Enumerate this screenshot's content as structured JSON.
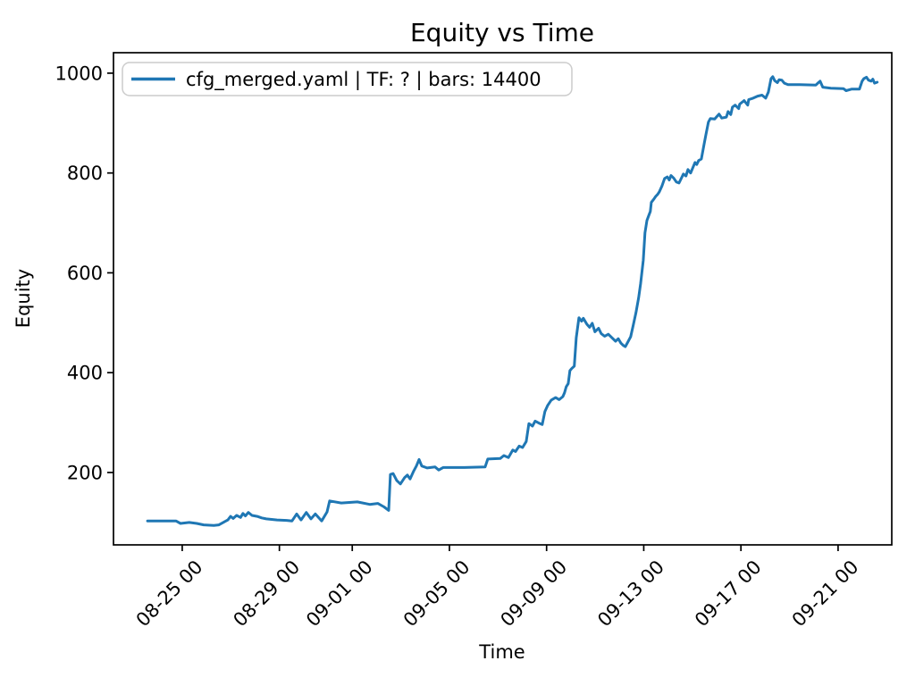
{
  "figure": {
    "background": "#ffffff"
  },
  "chart_data": {
    "type": "line",
    "title": "Equity vs Time",
    "xlabel": "Time",
    "ylabel": "Equity",
    "grid": false,
    "line_color": "#1f77b4",
    "legend": {
      "loc": "upper left",
      "entries": [
        {
          "label": "cfg_merged.yaml | TF: ? | bars: 14400",
          "color": "#1f77b4"
        }
      ]
    },
    "x_axis": {
      "unit": "days since 08-23 00:00",
      "lim": [
        -0.83,
        31.21
      ],
      "tick_rotation": 45,
      "ticks": [
        {
          "pos": 2,
          "label": "08-25 00"
        },
        {
          "pos": 6,
          "label": "08-29 00"
        },
        {
          "pos": 9,
          "label": "09-01 00"
        },
        {
          "pos": 13,
          "label": "09-05 00"
        },
        {
          "pos": 17,
          "label": "09-09 00"
        },
        {
          "pos": 21,
          "label": "09-13 00"
        },
        {
          "pos": 25,
          "label": "09-17 00"
        },
        {
          "pos": 29,
          "label": "09-21 00"
        }
      ]
    },
    "y_axis": {
      "lim": [
        55,
        1041
      ],
      "ticks": [
        200,
        400,
        600,
        800,
        1000
      ]
    },
    "series": [
      {
        "name": "cfg_merged.yaml | TF: ? | bars: 14400",
        "color": "#1f77b4",
        "points": [
          [
            0.57,
            103
          ],
          [
            1.2,
            103
          ],
          [
            1.74,
            103
          ],
          [
            1.93,
            98
          ],
          [
            2.29,
            100
          ],
          [
            2.6,
            98
          ],
          [
            2.88,
            95
          ],
          [
            3.3,
            94
          ],
          [
            3.51,
            95
          ],
          [
            3.88,
            105
          ],
          [
            3.99,
            112
          ],
          [
            4.1,
            108
          ],
          [
            4.24,
            114
          ],
          [
            4.4,
            110
          ],
          [
            4.5,
            118
          ],
          [
            4.6,
            113
          ],
          [
            4.72,
            120
          ],
          [
            4.87,
            114
          ],
          [
            5.09,
            112
          ],
          [
            5.27,
            109
          ],
          [
            5.46,
            107
          ],
          [
            5.9,
            105
          ],
          [
            6.3,
            104
          ],
          [
            6.52,
            103
          ],
          [
            6.71,
            117
          ],
          [
            6.89,
            105
          ],
          [
            7.11,
            120
          ],
          [
            7.3,
            107
          ],
          [
            7.48,
            117
          ],
          [
            7.74,
            103
          ],
          [
            7.96,
            121
          ],
          [
            8.07,
            143
          ],
          [
            8.55,
            139
          ],
          [
            9.21,
            141
          ],
          [
            9.72,
            136
          ],
          [
            10.05,
            138
          ],
          [
            10.31,
            131
          ],
          [
            10.5,
            124
          ],
          [
            10.57,
            196
          ],
          [
            10.68,
            198
          ],
          [
            10.83,
            184
          ],
          [
            10.98,
            177
          ],
          [
            11.16,
            190
          ],
          [
            11.27,
            195
          ],
          [
            11.38,
            187
          ],
          [
            11.53,
            203
          ],
          [
            11.64,
            213
          ],
          [
            11.75,
            226
          ],
          [
            11.86,
            213
          ],
          [
            12.08,
            209
          ],
          [
            12.41,
            211
          ],
          [
            12.56,
            205
          ],
          [
            12.74,
            210
          ],
          [
            13.62,
            210
          ],
          [
            14.47,
            211
          ],
          [
            14.58,
            227
          ],
          [
            15.09,
            228
          ],
          [
            15.24,
            234
          ],
          [
            15.43,
            230
          ],
          [
            15.61,
            245
          ],
          [
            15.72,
            242
          ],
          [
            15.87,
            253
          ],
          [
            16.01,
            250
          ],
          [
            16.16,
            262
          ],
          [
            16.27,
            298
          ],
          [
            16.42,
            293
          ],
          [
            16.53,
            303
          ],
          [
            16.68,
            299
          ],
          [
            16.82,
            296
          ],
          [
            16.93,
            322
          ],
          [
            17.04,
            334
          ],
          [
            17.19,
            345
          ],
          [
            17.37,
            350
          ],
          [
            17.52,
            346
          ],
          [
            17.67,
            352
          ],
          [
            17.74,
            360
          ],
          [
            17.81,
            372
          ],
          [
            17.89,
            378
          ],
          [
            17.96,
            404
          ],
          [
            18.03,
            408
          ],
          [
            18.14,
            413
          ],
          [
            18.22,
            470
          ],
          [
            18.33,
            510
          ],
          [
            18.44,
            503
          ],
          [
            18.51,
            509
          ],
          [
            18.66,
            497
          ],
          [
            18.77,
            491
          ],
          [
            18.88,
            499
          ],
          [
            18.99,
            482
          ],
          [
            19.14,
            489
          ],
          [
            19.25,
            478
          ],
          [
            19.39,
            473
          ],
          [
            19.54,
            477
          ],
          [
            19.69,
            470
          ],
          [
            19.84,
            463
          ],
          [
            19.95,
            468
          ],
          [
            20.06,
            459
          ],
          [
            20.17,
            454
          ],
          [
            20.24,
            452
          ],
          [
            20.35,
            462
          ],
          [
            20.46,
            472
          ],
          [
            20.57,
            496
          ],
          [
            20.68,
            520
          ],
          [
            20.79,
            550
          ],
          [
            20.87,
            578
          ],
          [
            20.98,
            625
          ],
          [
            21.05,
            680
          ],
          [
            21.13,
            705
          ],
          [
            21.2,
            714
          ],
          [
            21.27,
            723
          ],
          [
            21.31,
            741
          ],
          [
            21.42,
            748
          ],
          [
            21.49,
            753
          ],
          [
            21.57,
            757
          ],
          [
            21.64,
            762
          ],
          [
            21.75,
            774
          ],
          [
            21.86,
            789
          ],
          [
            21.97,
            792
          ],
          [
            22.05,
            786
          ],
          [
            22.12,
            795
          ],
          [
            22.23,
            790
          ],
          [
            22.34,
            782
          ],
          [
            22.45,
            780
          ],
          [
            22.63,
            798
          ],
          [
            22.74,
            794
          ],
          [
            22.82,
            807
          ],
          [
            22.93,
            800
          ],
          [
            23.11,
            821
          ],
          [
            23.18,
            817
          ],
          [
            23.26,
            825
          ],
          [
            23.37,
            828
          ],
          [
            23.48,
            857
          ],
          [
            23.55,
            875
          ],
          [
            23.66,
            902
          ],
          [
            23.74,
            909
          ],
          [
            23.92,
            908
          ],
          [
            24.1,
            918
          ],
          [
            24.21,
            910
          ],
          [
            24.4,
            912
          ],
          [
            24.47,
            923
          ],
          [
            24.58,
            917
          ],
          [
            24.65,
            932
          ],
          [
            24.76,
            936
          ],
          [
            24.91,
            929
          ],
          [
            24.95,
            938
          ],
          [
            25.13,
            945
          ],
          [
            25.28,
            936
          ],
          [
            25.32,
            947
          ],
          [
            25.5,
            950
          ],
          [
            25.69,
            954
          ],
          [
            25.87,
            956
          ],
          [
            26.02,
            950
          ],
          [
            26.13,
            962
          ],
          [
            26.24,
            989
          ],
          [
            26.31,
            993
          ],
          [
            26.39,
            985
          ],
          [
            26.5,
            981
          ],
          [
            26.57,
            987
          ],
          [
            26.68,
            986
          ],
          [
            26.79,
            980
          ],
          [
            26.94,
            977
          ],
          [
            27.42,
            977
          ],
          [
            28.08,
            976
          ],
          [
            28.19,
            981
          ],
          [
            28.26,
            984
          ],
          [
            28.37,
            972
          ],
          [
            28.7,
            970
          ],
          [
            29.22,
            969
          ],
          [
            29.33,
            965
          ],
          [
            29.55,
            968
          ],
          [
            29.88,
            968
          ],
          [
            29.99,
            984
          ],
          [
            30.06,
            989
          ],
          [
            30.17,
            992
          ],
          [
            30.25,
            986
          ],
          [
            30.36,
            984
          ],
          [
            30.43,
            988
          ],
          [
            30.5,
            980
          ],
          [
            30.61,
            982
          ]
        ]
      }
    ]
  }
}
